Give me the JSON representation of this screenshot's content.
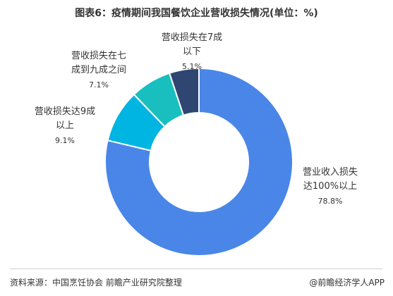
{
  "title": "图表6：疫情期间我国餐饮企业营收损失情况(单位：%)",
  "footer": {
    "source": "资料来源：中国烹饪协会 前瞻产业研究院整理",
    "credit": "@前瞻经济学人APP"
  },
  "chart_data": {
    "type": "pie",
    "donut": true,
    "title": "图表6：疫情期间我国餐饮企业营收损失情况(单位：%)",
    "slices": [
      {
        "label_lines": [
          "营业收入损失",
          "达100%以上"
        ],
        "pct_label": "78.8%",
        "value": 78.8,
        "color": "#4a86e8"
      },
      {
        "label_lines": [
          "营收损失达9成",
          "以上"
        ],
        "pct_label": "9.1%",
        "value": 9.1,
        "color": "#00b5e2"
      },
      {
        "label_lines": [
          "营收损失在七",
          "成到九成之间"
        ],
        "pct_label": "7.1%",
        "value": 7.1,
        "color": "#19bfbf"
      },
      {
        "label_lines": [
          "营收损失在7成",
          "以下"
        ],
        "pct_label": "5.1%",
        "value": 5.1,
        "color": "#2f4673"
      }
    ]
  }
}
